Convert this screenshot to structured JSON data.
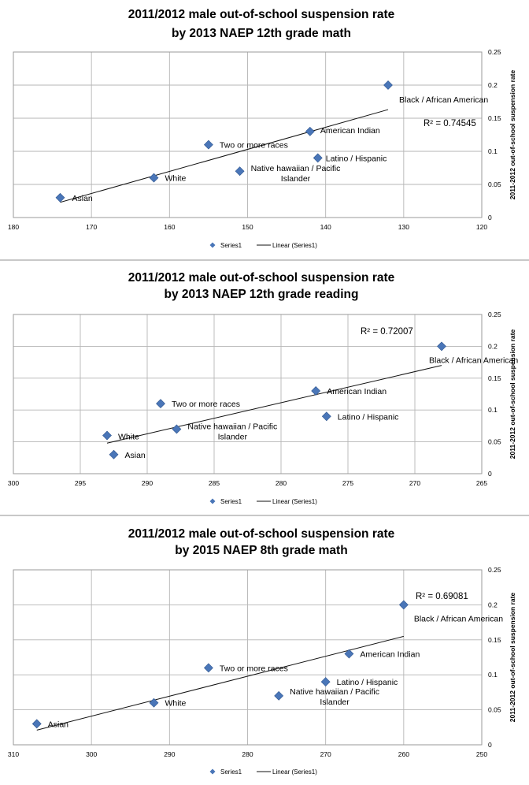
{
  "chart_data": [
    {
      "type": "scatter",
      "title": [
        "2011/2012 male out-of-school suspension rate",
        "by 2013 NAEP 12th grade math"
      ],
      "ylabel": "2011-2012 out-of-school suspension rate",
      "xlim": [
        180,
        120
      ],
      "ylim": [
        0,
        0.25
      ],
      "xticks": [
        "180",
        "170",
        "160",
        "150",
        "140",
        "130",
        "120"
      ],
      "yticks": [
        "0",
        "0.05",
        "0.1",
        "0.15",
        "0.2",
        "0.25"
      ],
      "r2": "R² = 0.74545",
      "trend": {
        "x1": 174,
        "y1": 0.023,
        "x2": 132,
        "y2": 0.163
      },
      "points": [
        {
          "label": "Asian",
          "x": 174,
          "y": 0.03
        },
        {
          "label": "White",
          "x": 162,
          "y": 0.06
        },
        {
          "label": "Two or more races",
          "x": 155,
          "y": 0.11
        },
        {
          "label": "Native hawaiian / Pacific",
          "label2": "Islander",
          "x": 151,
          "y": 0.07
        },
        {
          "label": "American Indian",
          "x": 142,
          "y": 0.13
        },
        {
          "label": "Latino / Hispanic",
          "x": 141,
          "y": 0.09
        },
        {
          "label": "Black / African American",
          "x": 132,
          "y": 0.2
        }
      ],
      "legend": [
        "Series1",
        "Linear (Series1)"
      ]
    },
    {
      "type": "scatter",
      "title": [
        "2011/2012 male out-of-school suspension rate",
        "by 2013 NAEP 12th grade reading"
      ],
      "ylabel": "2011-2012 out-of-school suspension rate",
      "xlim": [
        300,
        265
      ],
      "ylim": [
        0,
        0.25
      ],
      "xticks": [
        "300",
        "295",
        "290",
        "285",
        "280",
        "275",
        "270",
        "265"
      ],
      "yticks": [
        "0",
        "0.05",
        "0.1",
        "0.15",
        "0.2",
        "0.25"
      ],
      "r2": "R² = 0.72007",
      "trend": {
        "x1": 293,
        "y1": 0.048,
        "x2": 268,
        "y2": 0.17
      },
      "points": [
        {
          "label": "White",
          "x": 293,
          "y": 0.06
        },
        {
          "label": "Asian",
          "x": 292.5,
          "y": 0.03
        },
        {
          "label": "Two or more races",
          "x": 289,
          "y": 0.11
        },
        {
          "label": "Native hawaiian / Pacific",
          "label2": "Islander",
          "x": 287.8,
          "y": 0.07
        },
        {
          "label": "American Indian",
          "x": 277.4,
          "y": 0.13
        },
        {
          "label": "Latino / Hispanic",
          "x": 276.6,
          "y": 0.09
        },
        {
          "label": "Black / African American",
          "x": 268,
          "y": 0.2
        }
      ],
      "legend": [
        "Series1",
        "Linear (Series1)"
      ]
    },
    {
      "type": "scatter",
      "title": [
        "2011/2012 male out-of-school suspension rate",
        "by 2015 NAEP 8th grade math"
      ],
      "ylabel": "2011-2012 out-of-school suspension rate",
      "xlim": [
        310,
        250
      ],
      "ylim": [
        0,
        0.25
      ],
      "xticks": [
        "310",
        "300",
        "290",
        "280",
        "270",
        "260",
        "250"
      ],
      "yticks": [
        "0",
        "0.05",
        "0.1",
        "0.15",
        "0.2",
        "0.25"
      ],
      "r2": "R² = 0.69081",
      "trend": {
        "x1": 307,
        "y1": 0.021,
        "x2": 260,
        "y2": 0.155
      },
      "points": [
        {
          "label": "Asian",
          "x": 307,
          "y": 0.03
        },
        {
          "label": "White",
          "x": 292,
          "y": 0.06
        },
        {
          "label": "Two or more races",
          "x": 285,
          "y": 0.11
        },
        {
          "label": "Native hawaiian / Pacific",
          "label2": "Islander",
          "x": 276,
          "y": 0.07
        },
        {
          "label": "Latino / Hispanic",
          "x": 270,
          "y": 0.09
        },
        {
          "label": "American Indian",
          "x": 267,
          "y": 0.13
        },
        {
          "label": "Black / African American",
          "x": 260,
          "y": 0.2
        }
      ],
      "legend": [
        "Series1",
        "Linear (Series1)"
      ]
    }
  ]
}
